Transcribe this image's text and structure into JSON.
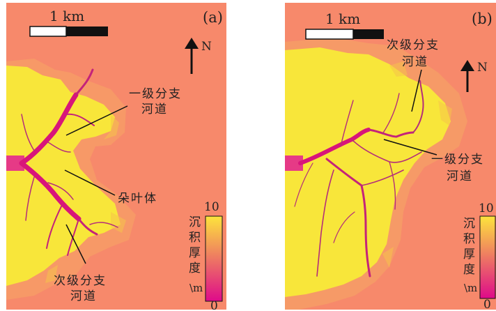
{
  "figures": [
    {
      "panel_label": "(a)",
      "scale_bar_label": "1 km",
      "north_label": "N",
      "annotations": [
        {
          "lines": [
            "一级分支",
            "河道"
          ]
        },
        {
          "lines": [
            "朵叶体"
          ]
        },
        {
          "lines": [
            "次级分支",
            "河道"
          ]
        }
      ],
      "legend": {
        "title_chars": [
          "沉",
          "积",
          "厚",
          "度"
        ],
        "unit": "\\m",
        "max": "10",
        "min": "0"
      }
    },
    {
      "panel_label": "(b)",
      "scale_bar_label": "1 km",
      "north_label": "N",
      "annotations": [
        {
          "lines": [
            "次级分支",
            "河道"
          ]
        },
        {
          "lines": [
            "一级分支",
            "河道"
          ]
        }
      ],
      "legend": {
        "title_chars": [
          "沉",
          "积",
          "厚",
          "度"
        ],
        "unit": "\\m",
        "max": "10",
        "min": "0"
      }
    }
  ],
  "colors": {
    "background": "#f7896b",
    "deposit": "#f8e63a",
    "deposit_edge": "#f5c24a",
    "channel": "#d8157a",
    "channel_light": "#b42d7a",
    "legend_top": "#fde43c",
    "legend_bottom": "#de0a8a",
    "ink": "#111111"
  }
}
